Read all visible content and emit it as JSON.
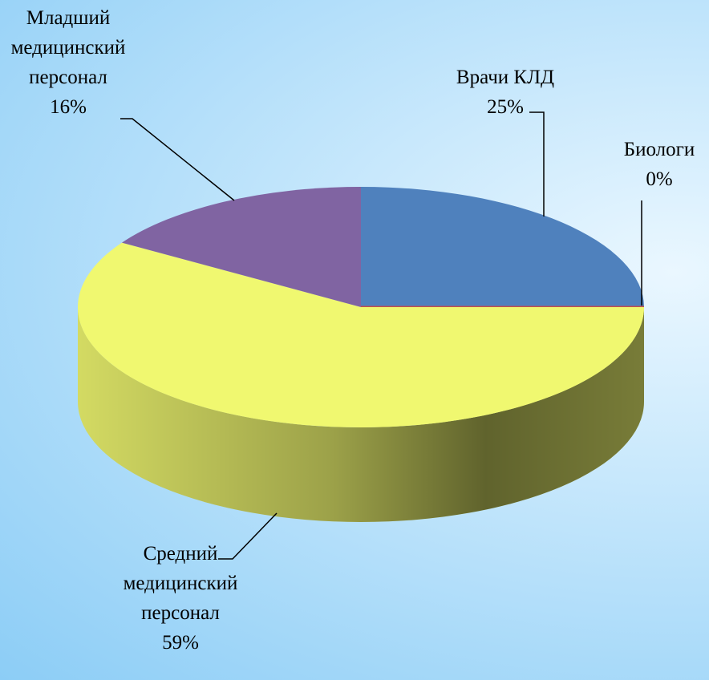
{
  "chart_data": {
    "type": "pie",
    "categories": [
      "Врачи КЛД",
      "Биологи",
      "Средний медицинский персонал",
      "Младший медицинский персонал"
    ],
    "values": [
      25,
      0,
      59,
      16
    ],
    "value_labels": [
      "25%",
      "0%",
      "59%",
      "16%"
    ],
    "colors": [
      "#4f81bd",
      "#c0504d",
      "#f0f870",
      "#8064a2"
    ],
    "3d": true
  }
}
